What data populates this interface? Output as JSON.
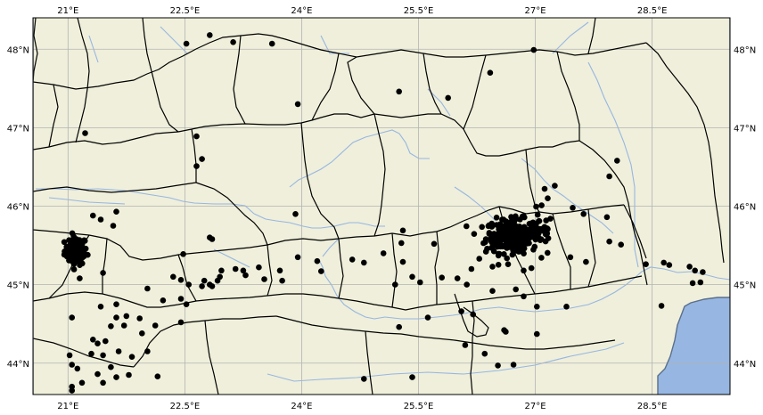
{
  "map": {
    "projection": "plate-carree",
    "extent": {
      "lon": [
        20.55,
        29.5
      ],
      "lat": [
        43.6,
        48.4
      ]
    },
    "colors": {
      "land": "#efefdb",
      "sea": "#97b6e1",
      "borders": "#000000",
      "rivers": "#97b6e1",
      "coastline": "#5a6f8c",
      "gridlines": "#b3b3b3",
      "points": "#000000"
    },
    "xticks": [
      {
        "value": 21,
        "label": "21°E"
      },
      {
        "value": 22.5,
        "label": "22.5°E"
      },
      {
        "value": 24,
        "label": "24°E"
      },
      {
        "value": 25.5,
        "label": "25.5°E"
      },
      {
        "value": 27,
        "label": "27°E"
      },
      {
        "value": 28.5,
        "label": "28.5°E"
      }
    ],
    "yticks": [
      {
        "value": 48,
        "label": "48°N"
      },
      {
        "value": 47,
        "label": "47°N"
      },
      {
        "value": 46,
        "label": "46°N"
      },
      {
        "value": 45,
        "label": "45°N"
      },
      {
        "value": 44,
        "label": "44°N"
      }
    ],
    "grid": true,
    "layers": [
      "land",
      "sea",
      "borders",
      "rivers",
      "coastline",
      "points"
    ]
  },
  "chart_data": {
    "type": "scatter",
    "xlabel": "",
    "ylabel": "",
    "xlim": [
      20.55,
      29.5
    ],
    "ylim": [
      43.6,
      48.4
    ],
    "grid": true,
    "points": [
      [
        22.82,
        48.18
      ],
      [
        23.12,
        48.09
      ],
      [
        23.62,
        48.07
      ],
      [
        22.52,
        48.07
      ],
      [
        26.98,
        47.99
      ],
      [
        26.42,
        47.7
      ],
      [
        25.25,
        47.46
      ],
      [
        25.88,
        47.38
      ],
      [
        23.95,
        47.3
      ],
      [
        22.65,
        46.89
      ],
      [
        21.22,
        46.93
      ],
      [
        22.72,
        46.6
      ],
      [
        22.65,
        46.51
      ],
      [
        28.05,
        46.58
      ],
      [
        27.95,
        46.38
      ],
      [
        27.25,
        46.26
      ],
      [
        27.12,
        46.22
      ],
      [
        27.16,
        46.1
      ],
      [
        27.08,
        46.01
      ],
      [
        27.48,
        45.98
      ],
      [
        27.62,
        45.9
      ],
      [
        27.92,
        45.86
      ],
      [
        21.42,
        45.83
      ],
      [
        21.62,
        45.93
      ],
      [
        21.32,
        45.88
      ],
      [
        21.58,
        45.75
      ],
      [
        23.92,
        45.9
      ],
      [
        25.3,
        45.69
      ],
      [
        25.28,
        45.53
      ],
      [
        25.7,
        45.52
      ],
      [
        26.28,
        45.33
      ],
      [
        26.18,
        45.2
      ],
      [
        26.45,
        45.23
      ],
      [
        26.65,
        45.26
      ],
      [
        26.95,
        45.21
      ],
      [
        26.85,
        45.18
      ],
      [
        27.45,
        45.35
      ],
      [
        27.65,
        45.29
      ],
      [
        27.95,
        45.55
      ],
      [
        28.1,
        45.51
      ],
      [
        28.42,
        45.26
      ],
      [
        28.65,
        45.28
      ],
      [
        28.72,
        45.25
      ],
      [
        28.98,
        45.23
      ],
      [
        29.05,
        45.18
      ],
      [
        29.15,
        45.16
      ],
      [
        29.12,
        45.03
      ],
      [
        29.02,
        45.02
      ],
      [
        25.05,
        45.4
      ],
      [
        25.3,
        45.29
      ],
      [
        24.65,
        45.32
      ],
      [
        24.8,
        45.28
      ],
      [
        24.2,
        45.3
      ],
      [
        23.95,
        45.35
      ],
      [
        24.25,
        45.17
      ],
      [
        25.2,
        45.0
      ],
      [
        25.42,
        45.1
      ],
      [
        25.52,
        45.03
      ],
      [
        25.8,
        45.09
      ],
      [
        26.0,
        45.08
      ],
      [
        26.12,
        45.0
      ],
      [
        26.45,
        44.92
      ],
      [
        26.75,
        44.94
      ],
      [
        26.85,
        44.85
      ],
      [
        27.02,
        44.72
      ],
      [
        27.4,
        44.72
      ],
      [
        25.25,
        44.46
      ],
      [
        25.62,
        44.58
      ],
      [
        26.05,
        44.66
      ],
      [
        26.2,
        44.62
      ],
      [
        26.6,
        44.42
      ],
      [
        26.62,
        44.4
      ],
      [
        27.02,
        44.37
      ],
      [
        26.1,
        44.23
      ],
      [
        26.35,
        44.12
      ],
      [
        26.52,
        43.97
      ],
      [
        26.72,
        43.98
      ],
      [
        25.42,
        43.82
      ],
      [
        24.8,
        43.8
      ],
      [
        28.62,
        44.73
      ],
      [
        21.05,
        44.58
      ],
      [
        21.42,
        44.72
      ],
      [
        21.62,
        44.75
      ],
      [
        21.62,
        44.58
      ],
      [
        21.75,
        44.6
      ],
      [
        21.55,
        44.47
      ],
      [
        21.72,
        44.48
      ],
      [
        21.92,
        44.57
      ],
      [
        22.12,
        44.48
      ],
      [
        22.45,
        44.52
      ],
      [
        22.22,
        44.8
      ],
      [
        22.45,
        44.82
      ],
      [
        22.52,
        44.75
      ],
      [
        21.95,
        44.38
      ],
      [
        21.32,
        44.3
      ],
      [
        21.38,
        44.25
      ],
      [
        21.48,
        44.28
      ],
      [
        21.65,
        44.15
      ],
      [
        21.82,
        44.08
      ],
      [
        21.45,
        44.1
      ],
      [
        21.3,
        44.12
      ],
      [
        21.02,
        44.1
      ],
      [
        21.05,
        43.98
      ],
      [
        21.12,
        43.93
      ],
      [
        21.38,
        43.86
      ],
      [
        21.55,
        43.95
      ],
      [
        21.45,
        43.75
      ],
      [
        21.62,
        43.82
      ],
      [
        21.78,
        43.85
      ],
      [
        21.05,
        43.7
      ],
      [
        21.05,
        43.65
      ],
      [
        21.18,
        43.75
      ],
      [
        22.02,
        44.15
      ],
      [
        22.15,
        43.83
      ],
      [
        21.45,
        45.15
      ],
      [
        21.15,
        45.08
      ],
      [
        22.45,
        45.06
      ],
      [
        22.35,
        45.1
      ],
      [
        22.48,
        45.39
      ],
      [
        22.82,
        45.6
      ],
      [
        22.85,
        45.58
      ],
      [
        22.75,
        45.05
      ],
      [
        22.72,
        44.98
      ],
      [
        22.82,
        45.0
      ],
      [
        22.97,
        45.18
      ],
      [
        22.92,
        45.05
      ],
      [
        23.15,
        45.2
      ],
      [
        23.28,
        45.12
      ],
      [
        23.25,
        45.18
      ],
      [
        23.52,
        45.07
      ],
      [
        23.75,
        45.05
      ],
      [
        23.45,
        45.22
      ],
      [
        23.72,
        45.18
      ],
      [
        22.85,
        44.98
      ],
      [
        22.95,
        45.1
      ],
      [
        22.55,
        45.0
      ],
      [
        22.02,
        44.95
      ]
    ],
    "clusters": [
      {
        "center": [
          21.1,
          45.43
        ],
        "spread": [
          0.12,
          0.15
        ],
        "count": 85
      },
      {
        "center": [
          26.7,
          45.62
        ],
        "spread": [
          0.28,
          0.18
        ],
        "count": 260
      },
      {
        "center": [
          27.05,
          45.7
        ],
        "spread": [
          0.15,
          0.15
        ],
        "count": 40
      }
    ]
  }
}
